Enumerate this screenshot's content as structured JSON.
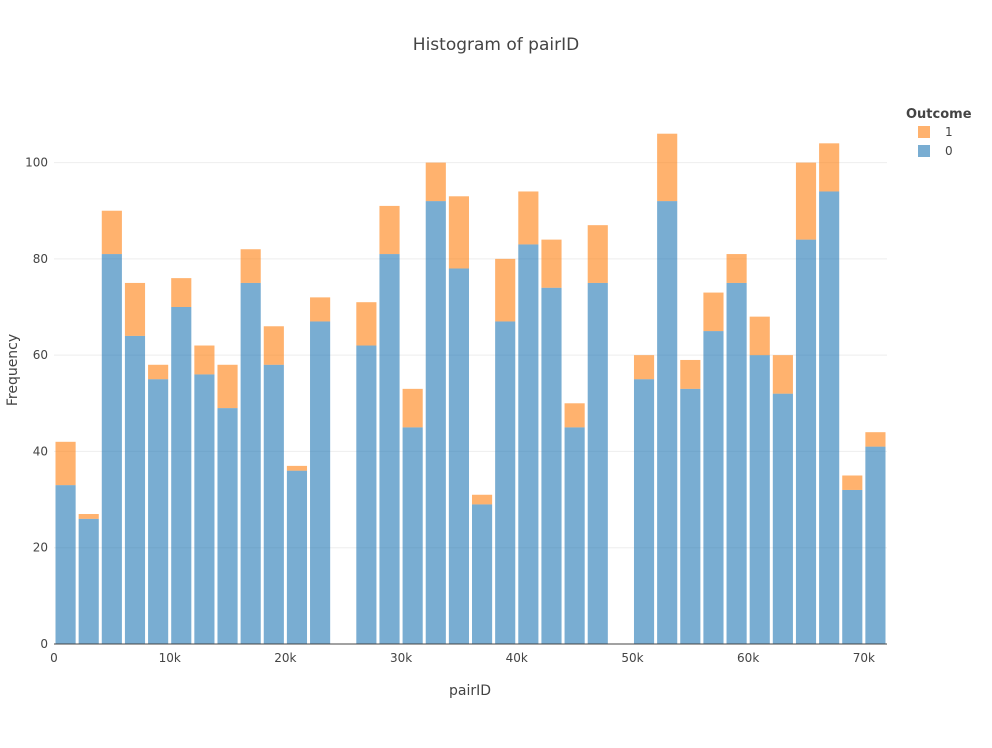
{
  "chart_data": {
    "type": "bar",
    "stacked": true,
    "title": "Histogram of pairID",
    "xlabel": "pairID",
    "ylabel": "Frequency",
    "xlim": [
      0,
      72000
    ],
    "ylim": [
      0,
      113
    ],
    "bin_size": 2000,
    "x_ticks": [
      0,
      10000,
      20000,
      30000,
      40000,
      50000,
      60000,
      70000
    ],
    "x_tick_labels": [
      "0",
      "10k",
      "20k",
      "30k",
      "40k",
      "50k",
      "60k",
      "70k"
    ],
    "y_ticks": [
      0,
      20,
      40,
      60,
      80,
      100
    ],
    "y_tick_labels": [
      "0",
      "20",
      "40",
      "60",
      "80",
      "100"
    ],
    "grid": true,
    "legend": {
      "title": "Outcome",
      "placement": "top-right"
    },
    "bin_starts": [
      0,
      2000,
      4000,
      6000,
      8000,
      10000,
      12000,
      14000,
      16000,
      18000,
      20000,
      22000,
      24000,
      26000,
      28000,
      30000,
      32000,
      34000,
      36000,
      38000,
      40000,
      42000,
      44000,
      46000,
      48000,
      50000,
      52000,
      54000,
      56000,
      58000,
      60000,
      62000,
      64000,
      66000,
      68000,
      70000
    ],
    "series": [
      {
        "name": "0",
        "color": "#1f77b4",
        "values": [
          33,
          26,
          81,
          64,
          55,
          70,
          56,
          49,
          75,
          58,
          36,
          67,
          0,
          62,
          81,
          45,
          92,
          78,
          29,
          67,
          83,
          74,
          45,
          75,
          0,
          55,
          92,
          53,
          65,
          75,
          60,
          52,
          84,
          94,
          32,
          41
        ]
      },
      {
        "name": "1",
        "color": "#ff7f0e",
        "values": [
          9,
          1,
          9,
          11,
          3,
          6,
          6,
          9,
          7,
          8,
          1,
          5,
          0,
          9,
          10,
          8,
          8,
          15,
          2,
          13,
          11,
          10,
          5,
          12,
          0,
          5,
          14,
          6,
          8,
          6,
          8,
          8,
          16,
          10,
          3,
          3
        ]
      }
    ]
  }
}
